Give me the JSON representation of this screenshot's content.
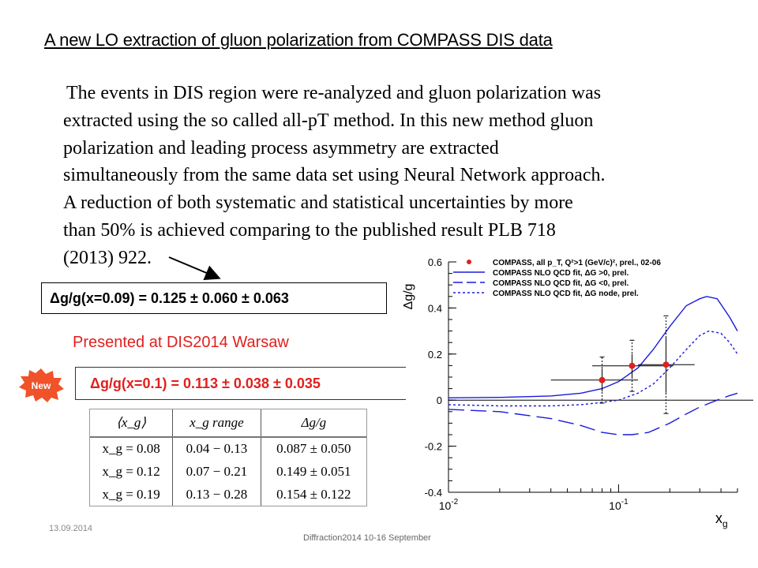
{
  "slide": {
    "title": "A new LO extraction of gluon polarization from COMPASS DIS data",
    "body_lines": [
      "The events in DIS region were re-analyzed and gluon polarization was",
      "extracted using the so called all-pT method. In this new method gluon",
      "polarization and leading process asymmetry are extracted",
      "simultaneously from the same data set using Neural Network approach.",
      "A reduction of both systematic and statistical uncertainties by more",
      "than 50% is achieved comparing to the published result PLB 718",
      "(2013) 922."
    ],
    "result_old": "Δg/g(x=0.09) = 0.125 ± 0.060 ± 0.063",
    "presented": "Presented at DIS2014 Warsaw",
    "new_badge": "New",
    "result_new": "Δg/g(x=0.1) = 0.113 ± 0.038 ± 0.035",
    "date": "13.09.2014",
    "footer": "Diffraction2014 10-16 September",
    "colors": {
      "red": "#e0201e",
      "blue": "#1a1adf",
      "badge": "#f0522a"
    }
  },
  "table": {
    "headers": [
      "⟨x_g⟩",
      "x_g range",
      "Δg/g"
    ],
    "rows": [
      [
        "x_g = 0.08",
        "0.04 − 0.13",
        "0.087 ± 0.050"
      ],
      [
        "x_g = 0.12",
        "0.07 − 0.21",
        "0.149 ± 0.051"
      ],
      [
        "x_g = 0.19",
        "0.13 − 0.28",
        "0.154 ± 0.122"
      ]
    ]
  },
  "chart_data": {
    "type": "scatter",
    "xlabel": "x_g",
    "ylabel": "Δg/g",
    "xscale": "log",
    "xlim": [
      0.01,
      0.5
    ],
    "ylim": [
      -0.4,
      0.6
    ],
    "y_ticks": [
      "0.6",
      "0.4",
      "0.2",
      "0",
      "-0.2",
      "-0.4"
    ],
    "x_ticks": [
      "10^-2",
      "10^-1"
    ],
    "legend_position": "top",
    "legend": [
      "COMPASS, all p_T, Q²>1 (GeV/c)², prel., 02-06",
      "COMPASS NLO QCD fit, ΔG >0, prel.",
      "COMPASS NLO QCD fit, ΔG <0, prel.",
      "COMPASS NLO QCD fit, ΔG node, prel."
    ],
    "points": [
      {
        "x": 0.08,
        "y": 0.087,
        "stat": 0.05,
        "sys": 0.05,
        "xlow": 0.04,
        "xhigh": 0.13
      },
      {
        "x": 0.12,
        "y": 0.149,
        "stat": 0.051,
        "sys": 0.06,
        "xlow": 0.07,
        "xhigh": 0.21
      },
      {
        "x": 0.19,
        "y": 0.154,
        "stat": 0.122,
        "sys": 0.09,
        "xlow": 0.13,
        "xhigh": 0.28
      }
    ],
    "series": [
      {
        "name": "COMPASS NLO QCD fit, ΔG >0, prel.",
        "style": "solid",
        "x": [
          0.01,
          0.02,
          0.04,
          0.06,
          0.08,
          0.1,
          0.13,
          0.16,
          0.2,
          0.25,
          0.3,
          0.33,
          0.38,
          0.45,
          0.5
        ],
        "y": [
          0.01,
          0.012,
          0.018,
          0.03,
          0.05,
          0.08,
          0.14,
          0.22,
          0.32,
          0.41,
          0.44,
          0.45,
          0.44,
          0.36,
          0.3
        ]
      },
      {
        "name": "COMPASS NLO QCD fit, ΔG <0, prel.",
        "style": "dashed",
        "x": [
          0.01,
          0.02,
          0.04,
          0.06,
          0.08,
          0.1,
          0.12,
          0.15,
          0.2,
          0.25,
          0.3,
          0.38,
          0.45,
          0.5
        ],
        "y": [
          -0.04,
          -0.05,
          -0.08,
          -0.11,
          -0.14,
          -0.15,
          -0.15,
          -0.14,
          -0.1,
          -0.06,
          -0.03,
          0.0,
          0.02,
          0.03
        ]
      },
      {
        "name": "COMPASS NLO QCD fit, ΔG node, prel.",
        "style": "dotted",
        "x": [
          0.01,
          0.02,
          0.04,
          0.06,
          0.08,
          0.1,
          0.13,
          0.16,
          0.2,
          0.25,
          0.3,
          0.34,
          0.4,
          0.45,
          0.5
        ],
        "y": [
          -0.02,
          -0.025,
          -0.025,
          -0.02,
          -0.01,
          0.0,
          0.03,
          0.07,
          0.14,
          0.22,
          0.28,
          0.3,
          0.29,
          0.25,
          0.2
        ]
      }
    ]
  }
}
